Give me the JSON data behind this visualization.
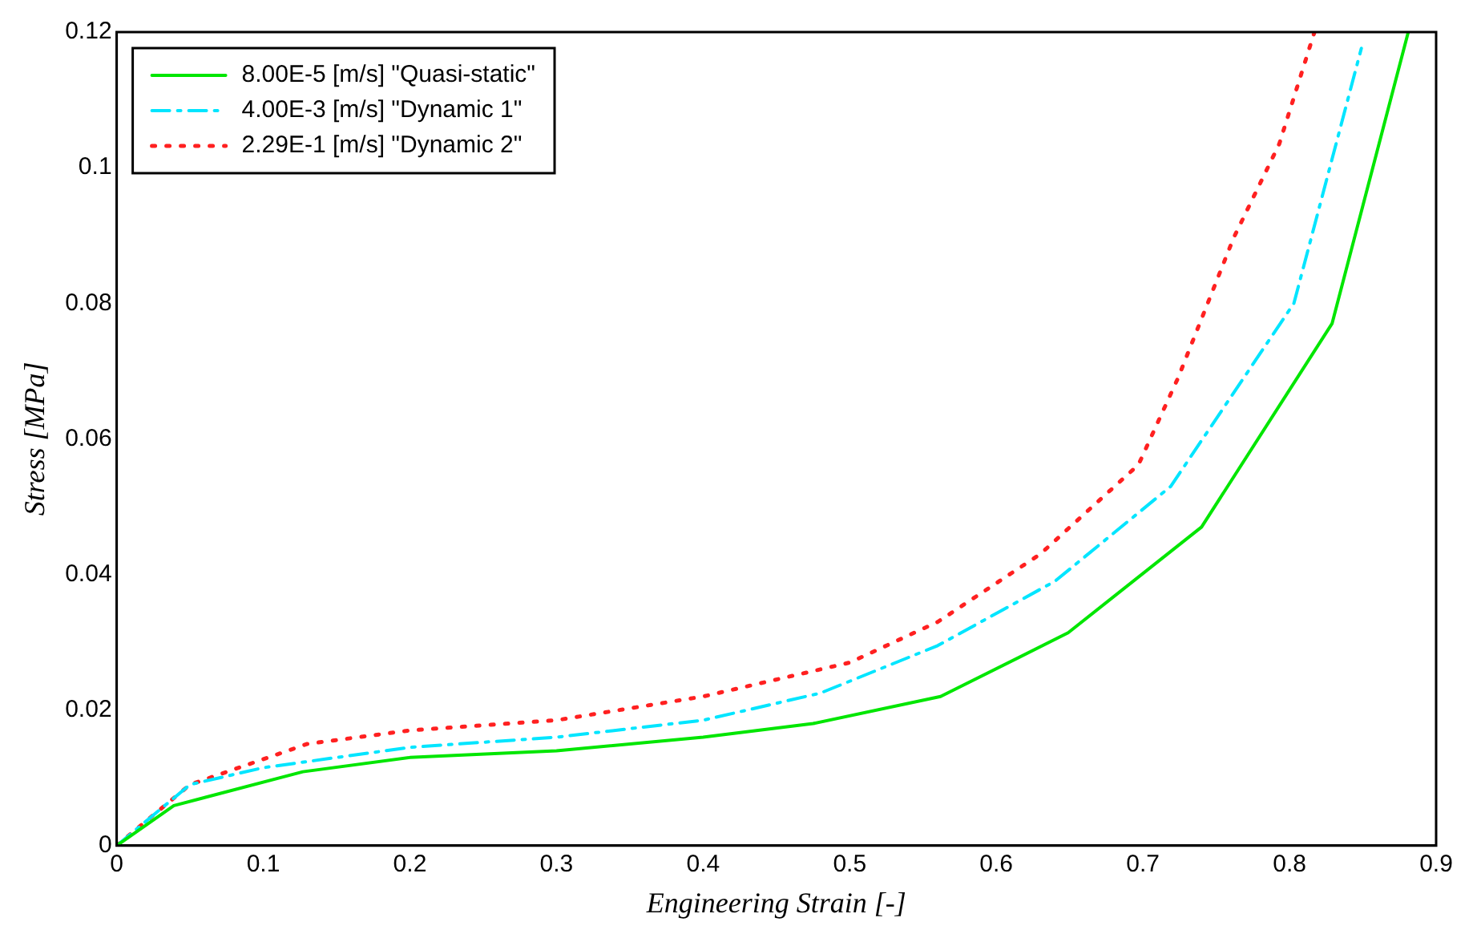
{
  "chart_data": {
    "type": "line",
    "xlabel": "Engineering Strain [-]",
    "ylabel": "Stress [MPa]",
    "xlim": [
      0,
      0.9
    ],
    "xticks": [
      0,
      0.1,
      0.2,
      0.3,
      0.4,
      0.5,
      0.6,
      0.7,
      0.8,
      0.9
    ],
    "ylim": [
      0,
      0.12
    ],
    "yticks": [
      0,
      0.02,
      0.04,
      0.06,
      0.08,
      0.1,
      0.12
    ],
    "grid": false,
    "legend": "top left",
    "marker": "none",
    "series": [
      {
        "name": "8.00E-5 [m/s] \"Quasi-static\"",
        "color": "#00e600",
        "line_style": "solid",
        "x": [
          0,
          0.039,
          0.127,
          0.2,
          0.3,
          0.4,
          0.475,
          0.562,
          0.649,
          0.74,
          0.829,
          0.881
        ],
        "values": [
          0,
          0.0059,
          0.0109,
          0.013,
          0.014,
          0.016,
          0.018,
          0.022,
          0.0314,
          0.047,
          0.077,
          0.12
        ]
      },
      {
        "name": "4.00E-3 [m/s] \"Dynamic 1\"",
        "color": "#00e5ff",
        "line_style": "dashdot",
        "x": [
          0,
          0.05,
          0.1,
          0.2,
          0.3,
          0.4,
          0.48,
          0.56,
          0.64,
          0.719,
          0.803,
          0.849
        ],
        "values": [
          0,
          0.009,
          0.0115,
          0.0145,
          0.016,
          0.0185,
          0.0225,
          0.0295,
          0.039,
          0.053,
          0.08,
          0.1176
        ]
      },
      {
        "name": "2.29E-1 [m/s] \"Dynamic 2\"",
        "color": "#ff2020",
        "line_style": "dotted",
        "x": [
          0,
          0.05,
          0.13,
          0.2,
          0.3,
          0.4,
          0.5,
          0.56,
          0.63,
          0.697,
          0.724,
          0.762,
          0.793,
          0.817
        ],
        "values": [
          0,
          0.009,
          0.015,
          0.017,
          0.0185,
          0.022,
          0.027,
          0.033,
          0.043,
          0.0562,
          0.069,
          0.0897,
          0.1035,
          0.12
        ]
      }
    ]
  }
}
